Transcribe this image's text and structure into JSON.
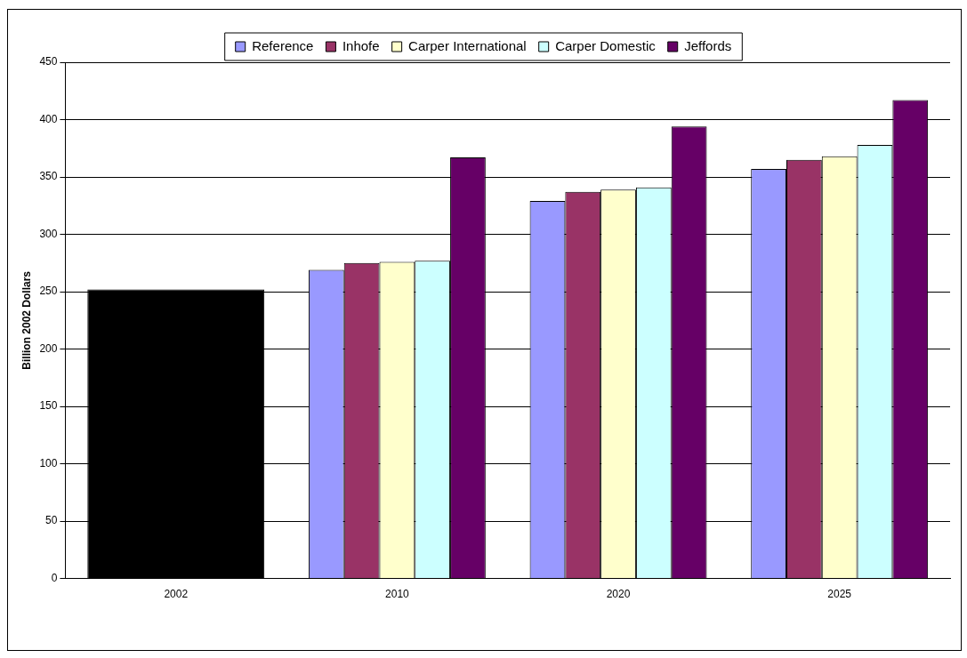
{
  "chart_data": {
    "type": "bar",
    "ylabel": "Billion 2002 Dollars",
    "categories": [
      "2002",
      "2010",
      "2020",
      "2025"
    ],
    "series": [
      {
        "color": "#000000",
        "values": [
          252,
          null,
          null,
          null
        ]
      },
      {
        "name": "Reference",
        "color": "#9999ff",
        "values": [
          null,
          269,
          329,
          357
        ]
      },
      {
        "name": "Inhofe",
        "color": "#993366",
        "values": [
          null,
          275,
          337,
          365
        ]
      },
      {
        "name": "Carper International",
        "color": "#ffffcc",
        "values": [
          null,
          276,
          339,
          368
        ]
      },
      {
        "name": "Carper Domestic",
        "color": "#ccffff",
        "values": [
          null,
          277,
          341,
          378
        ]
      },
      {
        "name": "Jeffords",
        "color": "#660066",
        "values": [
          null,
          367,
          394,
          417
        ]
      }
    ],
    "ylim": [
      0,
      450
    ],
    "yticks": [
      0,
      50,
      100,
      150,
      200,
      250,
      300,
      350,
      400,
      450
    ],
    "grid": "y",
    "legend": "top"
  }
}
